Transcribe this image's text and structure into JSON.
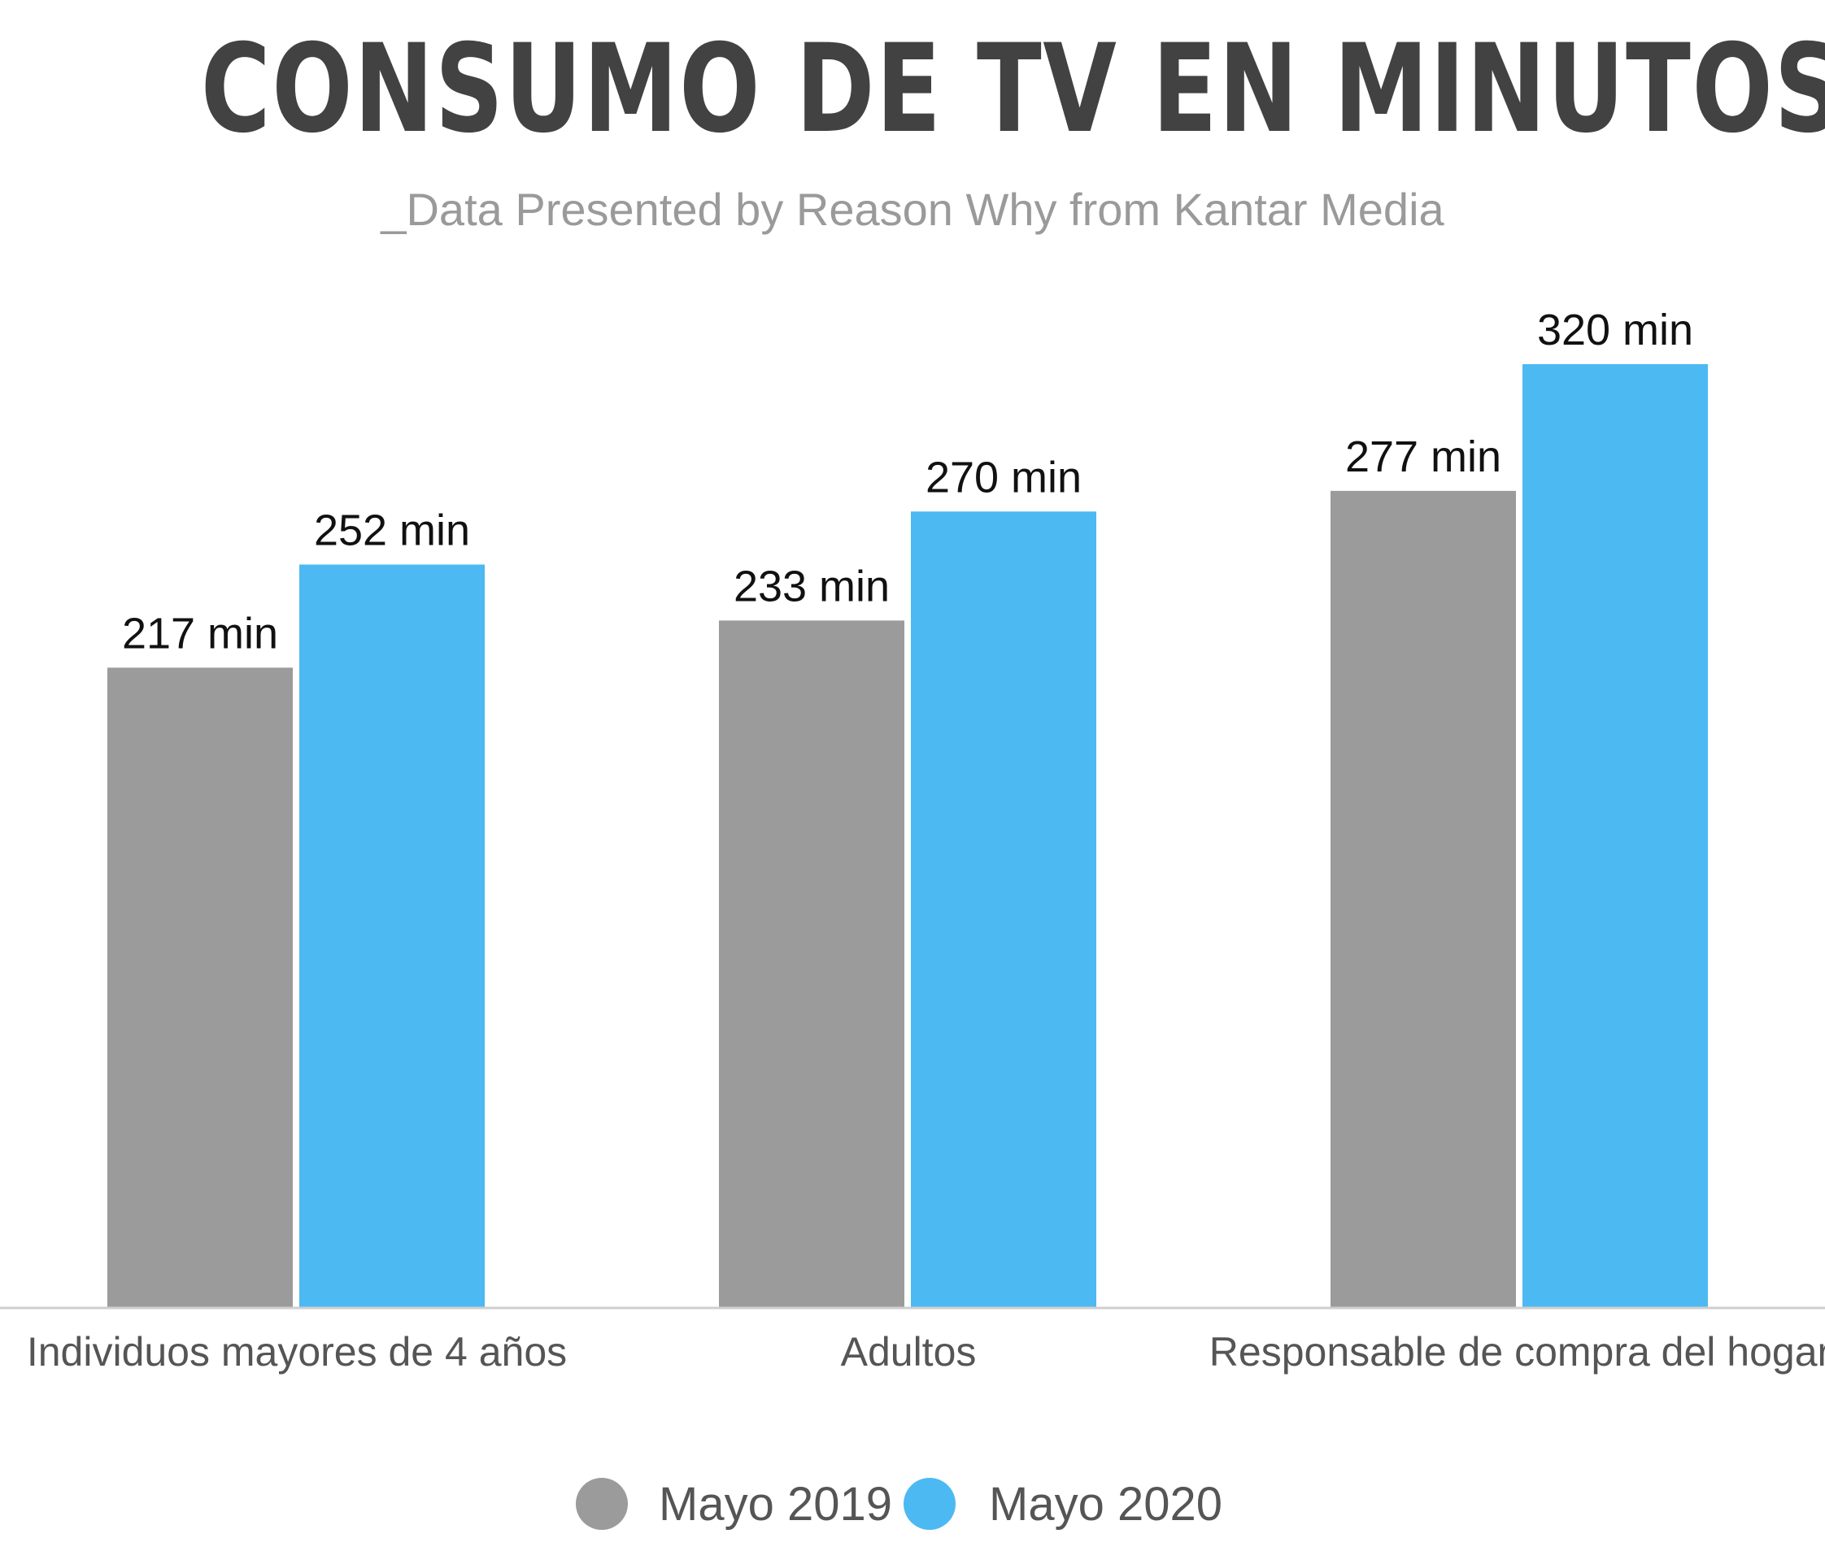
{
  "chart_data": {
    "type": "bar",
    "title": "CONSUMO DE TV EN MINUTOS",
    "subtitle": "_Data Presented by Reason Why from Kantar Media",
    "categories": [
      "Individuos mayores de 4 años",
      "Adultos",
      "Responsable de compra del hogar"
    ],
    "series": [
      {
        "name": "Mayo 2019",
        "color": "#9b9b9b",
        "values": [
          217,
          233,
          277
        ],
        "labels": [
          "217 min",
          "233 min",
          "277 min"
        ]
      },
      {
        "name": "Mayo 2020",
        "color": "#4cb9f2",
        "values": [
          252,
          270,
          320
        ],
        "labels": [
          "252 min",
          "270 min",
          "320 min"
        ]
      }
    ],
    "ylim": [
      0,
      320
    ],
    "grid": false,
    "legend_position": "bottom-center",
    "xlabel": "",
    "ylabel": ""
  }
}
